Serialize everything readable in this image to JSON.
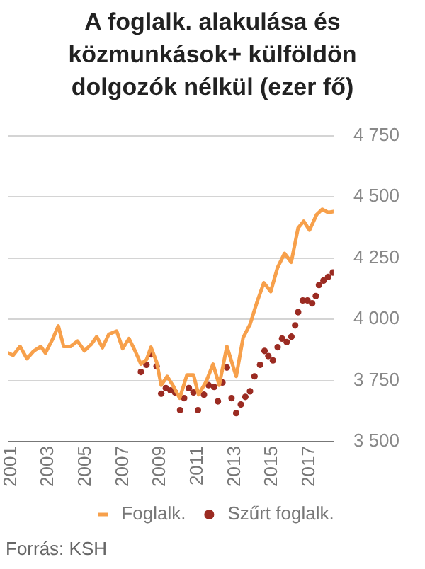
{
  "chart_data": {
    "type": "line",
    "title": "A foglalk. alakulása és közmunkások+ külföldön dolgozók nélkül (ezer fő)",
    "xlim": [
      2000.87,
      2018.3
    ],
    "xticks": [
      2001,
      2003,
      2005,
      2007,
      2009,
      2011,
      2013,
      2015,
      2017
    ],
    "ylim": [
      3500,
      4750
    ],
    "yticks": [
      {
        "value": 3500,
        "label": "3 500"
      },
      {
        "value": 3750,
        "label": "3 750"
      },
      {
        "value": 4000,
        "label": "4 000"
      },
      {
        "value": 4250,
        "label": "4 250"
      },
      {
        "value": 4500,
        "label": "4 500"
      },
      {
        "value": 4750,
        "label": "4 750"
      }
    ],
    "grid": "y",
    "legend": "bottom",
    "annotations": [
      "Forrás: KSH"
    ],
    "series": [
      {
        "name": "Foglalk.",
        "type": "line",
        "marker": "none",
        "line_style": "solid",
        "color": "#f7a04b",
        "x": [
          2000.87,
          2001.12,
          2001.49,
          2001.86,
          2002.23,
          2002.6,
          2002.85,
          2003.22,
          2003.54,
          2003.83,
          2004.2,
          2004.57,
          2004.94,
          2005.31,
          2005.6,
          2005.91,
          2006.25,
          2006.67,
          2006.99,
          2007.33,
          2007.66,
          2007.97,
          2008.27,
          2008.51,
          2008.81,
          2009.06,
          2009.38,
          2009.7,
          2010.05,
          2010.44,
          2010.79,
          2011.06,
          2011.47,
          2011.84,
          2012.17,
          2012.58,
          2013.08,
          2013.45,
          2013.82,
          2014.19,
          2014.56,
          2014.93,
          2015.3,
          2015.67,
          2016.03,
          2016.4,
          2016.7,
          2017.01,
          2017.39,
          2017.69,
          2018.01,
          2018.3
        ],
        "values": [
          3862,
          3853,
          3889,
          3839,
          3871,
          3889,
          3862,
          3916,
          3973,
          3889,
          3889,
          3911,
          3871,
          3898,
          3929,
          3884,
          3939,
          3952,
          3880,
          3921,
          3871,
          3817,
          3835,
          3886,
          3826,
          3731,
          3767,
          3728,
          3678,
          3773,
          3773,
          3692,
          3746,
          3817,
          3731,
          3889,
          3767,
          3925,
          3979,
          4069,
          4149,
          4113,
          4212,
          4269,
          4233,
          4373,
          4400,
          4364,
          4427,
          4449,
          4436,
          4440
        ]
      },
      {
        "name": "Szűrt foglalk.",
        "type": "scatter",
        "marker": "circle",
        "color": "#9b2b22",
        "x": [
          2007.97,
          2008.27,
          2008.51,
          2008.81,
          2009.06,
          2009.31,
          2009.55,
          2009.8,
          2010.07,
          2010.29,
          2010.54,
          2010.79,
          2011.03,
          2011.35,
          2011.6,
          2011.9,
          2012.1,
          2012.34,
          2012.58,
          2012.83,
          2013.08,
          2013.33,
          2013.57,
          2013.82,
          2014.06,
          2014.36,
          2014.6,
          2014.8,
          2015.05,
          2015.3,
          2015.54,
          2015.79,
          2016.04,
          2016.24,
          2016.4,
          2016.65,
          2016.9,
          2017.15,
          2017.35,
          2017.52,
          2017.76,
          2018.01,
          2018.26
        ],
        "values": [
          3785,
          3814,
          3857,
          3808,
          3696,
          3719,
          3710,
          3701,
          3629,
          3678,
          3719,
          3701,
          3629,
          3692,
          3731,
          3724,
          3665,
          3742,
          3803,
          3678,
          3617,
          3652,
          3683,
          3706,
          3767,
          3814,
          3871,
          3850,
          3832,
          3886,
          3921,
          3907,
          3929,
          3975,
          4029,
          4077,
          4077,
          4065,
          4095,
          4140,
          4158,
          4173,
          4191
        ]
      }
    ]
  }
}
